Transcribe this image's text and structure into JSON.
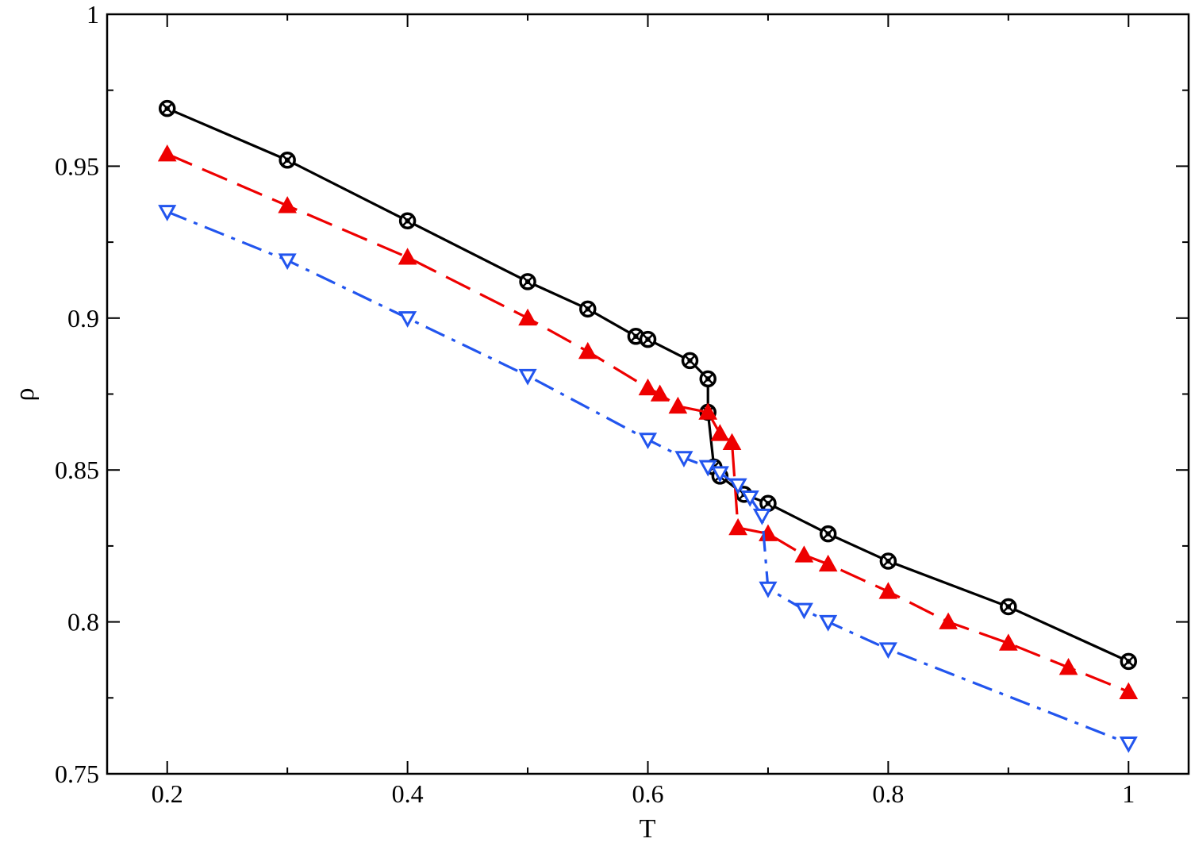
{
  "chart_data": {
    "type": "line",
    "title": "",
    "xlabel": "T",
    "ylabel": "ρ",
    "xlim": [
      0.15,
      1.05
    ],
    "ylim": [
      0.75,
      1.0
    ],
    "xticks": [
      0.2,
      0.4,
      0.6,
      0.8,
      1.0
    ],
    "xtick_labels": [
      "0.2",
      "0.4",
      "0.6",
      "0.8",
      "1"
    ],
    "x_minor_step": 0.1,
    "yticks": [
      0.75,
      0.8,
      0.85,
      0.9,
      0.95,
      1.0
    ],
    "ytick_labels": [
      "0.75",
      "0.8",
      "0.85",
      "0.9",
      "0.95",
      "1"
    ],
    "y_minor_step": 0.025,
    "grid": false,
    "legend": "none",
    "series": [
      {
        "color": "#000000",
        "line_style": "solid",
        "marker": "circle-cross",
        "x": [
          0.2,
          0.3,
          0.4,
          0.5,
          0.55,
          0.59,
          0.6,
          0.635,
          0.65,
          0.65,
          0.655,
          0.66,
          0.68,
          0.7,
          0.75,
          0.8,
          0.9,
          1.0
        ],
        "y": [
          0.969,
          0.952,
          0.932,
          0.912,
          0.903,
          0.894,
          0.893,
          0.886,
          0.88,
          0.869,
          0.851,
          0.848,
          0.842,
          0.839,
          0.829,
          0.82,
          0.805,
          0.787
        ]
      },
      {
        "color": "#ee0000",
        "line_style": "dashed",
        "marker": "triangle-up",
        "x": [
          0.2,
          0.3,
          0.4,
          0.5,
          0.55,
          0.6,
          0.61,
          0.625,
          0.65,
          0.66,
          0.67,
          0.675,
          0.7,
          0.73,
          0.75,
          0.8,
          0.85,
          0.9,
          0.95,
          1.0
        ],
        "y": [
          0.954,
          0.937,
          0.92,
          0.9,
          0.889,
          0.877,
          0.875,
          0.871,
          0.869,
          0.862,
          0.859,
          0.831,
          0.829,
          0.822,
          0.819,
          0.81,
          0.8,
          0.793,
          0.785,
          0.777
        ]
      },
      {
        "color": "#2255ee",
        "line_style": "dashdot",
        "marker": "triangle-down",
        "x": [
          0.2,
          0.3,
          0.4,
          0.5,
          0.6,
          0.63,
          0.65,
          0.66,
          0.675,
          0.685,
          0.695,
          0.7,
          0.73,
          0.75,
          0.8,
          1.0
        ],
        "y": [
          0.935,
          0.919,
          0.9,
          0.881,
          0.86,
          0.854,
          0.851,
          0.849,
          0.845,
          0.841,
          0.835,
          0.811,
          0.804,
          0.8,
          0.791,
          0.76
        ]
      }
    ]
  }
}
